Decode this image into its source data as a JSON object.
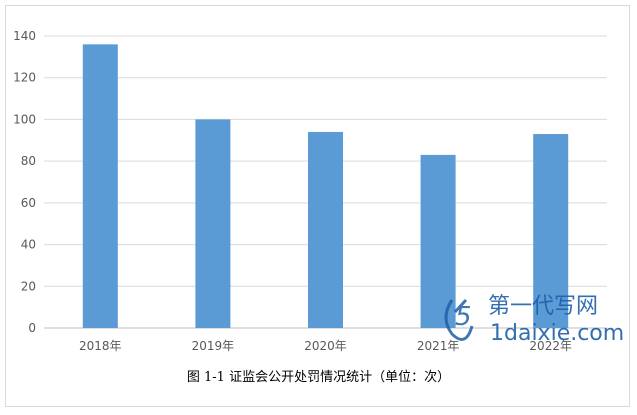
{
  "chart_data": {
    "type": "bar",
    "categories": [
      "2018年",
      "2019年",
      "2020年",
      "2021年",
      "2022年"
    ],
    "values": [
      136,
      100,
      94,
      83,
      93
    ],
    "ylim": [
      0,
      140
    ],
    "yticks": [
      0,
      20,
      40,
      60,
      80,
      100,
      120,
      140
    ],
    "grid": true,
    "bar_color": "#5b9bd5",
    "caption": "图 1-1  证监会公开处罚情况统计（单位：次）"
  },
  "watermark": {
    "text_cn": "第一代写网",
    "text_en": "1daixie.com",
    "color": "#1f5fa8"
  }
}
